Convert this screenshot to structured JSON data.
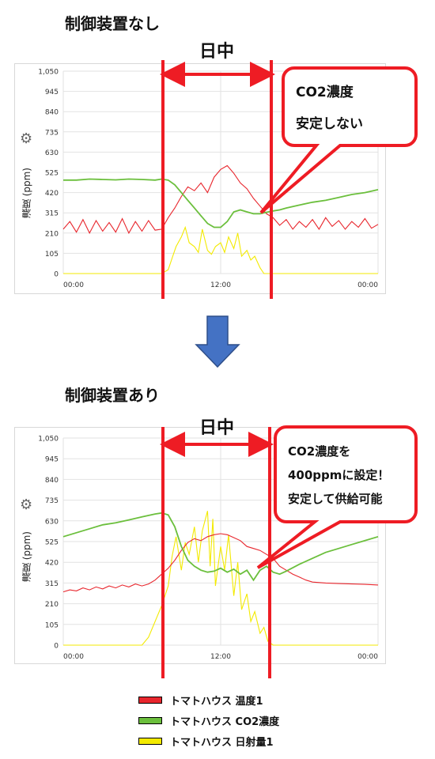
{
  "sections": [
    {
      "title": "制御装置なし"
    },
    {
      "title": "制御装置あり"
    }
  ],
  "daytime_label": "日中",
  "callouts": [
    {
      "lines": [
        "CO2濃度",
        "安定しない"
      ]
    },
    {
      "lines": [
        "CO2濃度を",
        "400ppmに設定！",
        "安定して供給可能"
      ]
    }
  ],
  "icons": {
    "settings": "gear-icon",
    "arrow": "down-arrow-icon"
  },
  "colors": {
    "temp": "#e8262d",
    "co2": "#6bbf3c",
    "solar": "#f3ea00",
    "marker": "#ee1c24",
    "arrow": "#4472c4"
  },
  "legend": [
    {
      "label": "トマトハウス 温度1",
      "color": "#e8262d"
    },
    {
      "label": "トマトハウス CO2濃度",
      "color": "#6bbf3c"
    },
    {
      "label": "トマトハウス 日射量1",
      "color": "#f3ea00"
    }
  ],
  "chart_data": [
    {
      "type": "line",
      "ylabel": "濃度 (ppm)",
      "yticks": [
        "1,050",
        "945",
        "840",
        "735",
        "630",
        "525",
        "420",
        "315",
        "210",
        "105",
        "0"
      ],
      "ylim": [
        0,
        1050
      ],
      "xticks": [
        "00:00",
        "12:00",
        "00:00"
      ],
      "xlim": [
        0,
        24
      ],
      "grid": true,
      "series": [
        {
          "name": "トマトハウス 温度1",
          "color": "#e8262d",
          "x": [
            0,
            0.5,
            1,
            1.5,
            2,
            2.5,
            3,
            3.5,
            4,
            4.5,
            5,
            5.5,
            6,
            6.5,
            7,
            7.5,
            8,
            8.5,
            9,
            9.5,
            10,
            10.5,
            11,
            11.5,
            12,
            12.5,
            13,
            13.5,
            14,
            14.5,
            15,
            15.5,
            16,
            16.5,
            17,
            17.5,
            18,
            18.5,
            19,
            19.5,
            20,
            20.5,
            21,
            21.5,
            22,
            22.5,
            23,
            23.5,
            24
          ],
          "y": [
            230,
            270,
            215,
            280,
            210,
            275,
            220,
            265,
            215,
            285,
            210,
            270,
            220,
            275,
            225,
            230,
            290,
            340,
            400,
            450,
            430,
            470,
            420,
            500,
            540,
            560,
            520,
            470,
            440,
            390,
            350,
            310,
            290,
            250,
            280,
            230,
            270,
            240,
            280,
            230,
            290,
            245,
            275,
            230,
            270,
            240,
            285,
            235,
            255
          ]
        },
        {
          "name": "トマトハウス CO2濃度",
          "color": "#6bbf3c",
          "x": [
            0,
            1,
            2,
            3,
            4,
            5,
            6,
            7,
            7.5,
            8,
            8.5,
            9,
            9.5,
            10,
            10.5,
            11,
            11.5,
            12,
            12.5,
            13,
            13.5,
            14,
            14.5,
            15,
            15.5,
            16,
            16.5,
            17,
            18,
            19,
            20,
            21,
            22,
            23,
            24
          ],
          "y": [
            485,
            485,
            490,
            488,
            486,
            490,
            488,
            485,
            490,
            485,
            460,
            420,
            380,
            340,
            300,
            260,
            240,
            240,
            270,
            320,
            330,
            320,
            310,
            310,
            318,
            325,
            330,
            340,
            355,
            370,
            380,
            395,
            410,
            420,
            435
          ]
        },
        {
          "name": "トマトハウス 日射量1",
          "color": "#f3ea00",
          "x": [
            0,
            7.5,
            8,
            8.3,
            8.6,
            9,
            9.3,
            9.6,
            10,
            10.3,
            10.6,
            11,
            11.3,
            11.6,
            12,
            12.3,
            12.6,
            13,
            13.3,
            13.6,
            14,
            14.3,
            14.6,
            15,
            15.3,
            24
          ],
          "y": [
            0,
            0,
            20,
            80,
            140,
            190,
            240,
            160,
            140,
            110,
            230,
            120,
            100,
            140,
            160,
            110,
            190,
            130,
            210,
            90,
            120,
            70,
            90,
            30,
            0,
            0
          ]
        }
      ]
    },
    {
      "type": "line",
      "ylabel": "濃度 (ppm)",
      "yticks": [
        "1,050",
        "945",
        "840",
        "735",
        "630",
        "525",
        "420",
        "315",
        "210",
        "105",
        "0"
      ],
      "ylim": [
        0,
        1050
      ],
      "xticks": [
        "00:00",
        "12:00",
        "00:00"
      ],
      "xlim": [
        0,
        24
      ],
      "grid": true,
      "series": [
        {
          "name": "トマトハウス 温度1",
          "color": "#e8262d",
          "x": [
            0,
            0.5,
            1,
            1.5,
            2,
            2.5,
            3,
            3.5,
            4,
            4.5,
            5,
            5.5,
            6,
            6.5,
            7,
            7.5,
            8,
            8.5,
            9,
            9.5,
            10,
            10.5,
            11,
            11.5,
            12,
            12.5,
            13,
            13.5,
            14,
            14.5,
            15,
            15.5,
            16,
            16.5,
            17,
            17.5,
            18,
            18.5,
            19,
            20,
            21,
            22,
            23,
            24
          ],
          "y": [
            270,
            280,
            275,
            290,
            280,
            295,
            285,
            300,
            290,
            305,
            295,
            310,
            300,
            310,
            330,
            360,
            390,
            430,
            480,
            520,
            540,
            530,
            550,
            560,
            565,
            560,
            545,
            530,
            500,
            490,
            480,
            460,
            440,
            400,
            380,
            360,
            345,
            330,
            320,
            315,
            312,
            310,
            308,
            305
          ]
        },
        {
          "name": "トマトハウス CO2濃度",
          "color": "#6bbf3c",
          "x": [
            0,
            1,
            2,
            3,
            4,
            5,
            6,
            7,
            7.5,
            8,
            8.5,
            9,
            9.5,
            10,
            10.5,
            11,
            11.5,
            12,
            12.5,
            13,
            13.5,
            14,
            14.5,
            15,
            15.5,
            16,
            16.5,
            17,
            18,
            19,
            20,
            21,
            22,
            23,
            24
          ],
          "y": [
            550,
            570,
            590,
            610,
            620,
            635,
            650,
            665,
            670,
            660,
            600,
            500,
            430,
            400,
            380,
            370,
            375,
            390,
            370,
            385,
            360,
            380,
            330,
            380,
            400,
            370,
            360,
            375,
            410,
            440,
            470,
            490,
            510,
            530,
            550
          ]
        },
        {
          "name": "トマトハウス 日射量1",
          "color": "#f3ea00",
          "x": [
            0,
            6,
            6.5,
            7,
            7.5,
            8,
            8.3,
            8.6,
            9,
            9.3,
            9.6,
            10,
            10.3,
            10.6,
            11,
            11.2,
            11.4,
            11.6,
            12,
            12.3,
            12.6,
            13,
            13.3,
            13.6,
            14,
            14.3,
            14.6,
            15,
            15.3,
            15.6,
            16,
            24
          ],
          "y": [
            0,
            0,
            40,
            120,
            200,
            300,
            450,
            550,
            380,
            520,
            460,
            600,
            420,
            580,
            680,
            400,
            640,
            300,
            500,
            380,
            560,
            250,
            420,
            180,
            260,
            120,
            170,
            60,
            90,
            20,
            0,
            0
          ]
        }
      ]
    }
  ]
}
